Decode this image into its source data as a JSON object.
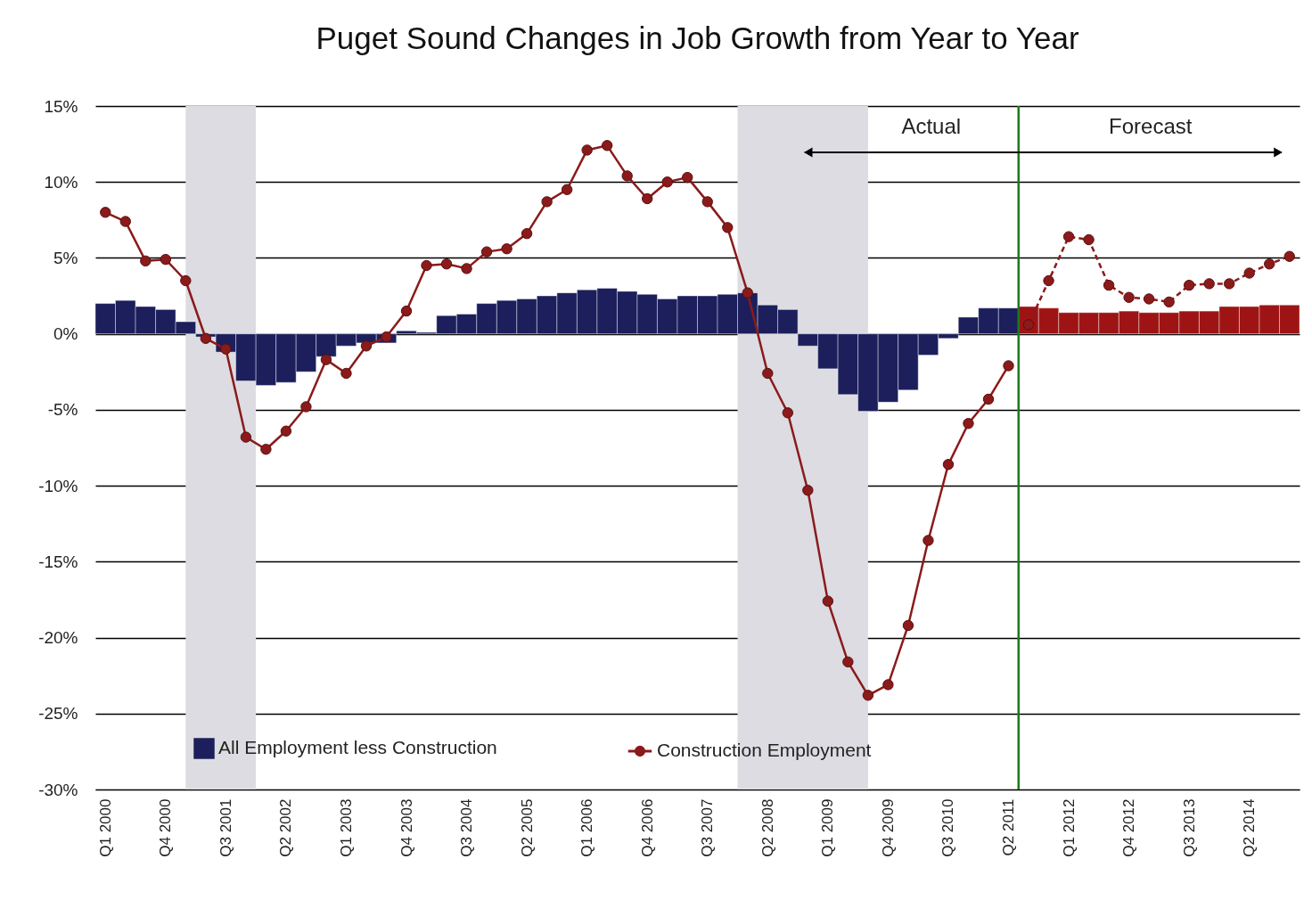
{
  "chart_data": {
    "type": "bar",
    "title": "Puget Sound Changes in Job Growth from Year to Year",
    "categories": [
      "Q1 2000",
      null,
      null,
      "Q4 2000",
      null,
      null,
      "Q3 2001",
      null,
      null,
      "Q2 2002",
      null,
      null,
      "Q1 2003",
      null,
      null,
      "Q4 2003",
      null,
      null,
      "Q3 2004",
      null,
      null,
      "Q2 2005",
      null,
      null,
      "Q1 2006",
      null,
      null,
      "Q4 2006",
      null,
      null,
      "Q3 2007",
      null,
      null,
      "Q2 2008",
      null,
      null,
      "Q1 2009",
      null,
      null,
      "Q4 2009",
      null,
      null,
      "Q3 2010",
      null,
      null,
      "Q2 2011",
      null,
      null,
      "Q1 2012",
      null,
      null,
      "Q4 2012",
      null,
      null,
      "Q3 2013",
      null,
      null,
      "Q2 2014",
      null,
      null
    ],
    "series": [
      {
        "name": "All Employment less Construction",
        "color": "#1c1f5c",
        "colors": [
          "#1c1f5c",
          "#1c1f5c",
          "#1c1f5c",
          "#1c1f5c",
          "#1c1f5c",
          "#1c1f5c",
          "#1c1f5c",
          "#1c1f5c",
          "#1c1f5c",
          "#1c1f5c",
          "#1c1f5c",
          "#1c1f5c",
          "#1c1f5c",
          "#1c1f5c",
          "#1c1f5c",
          "#1c1f5c",
          "#1c1f5c",
          "#1c1f5c",
          "#1c1f5c",
          "#1c1f5c",
          "#1c1f5c",
          "#1c1f5c",
          "#1c1f5c",
          "#1c1f5c",
          "#1c1f5c",
          "#1c1f5c",
          "#1c1f5c",
          "#1c1f5c",
          "#1c1f5c",
          "#1c1f5c",
          "#1c1f5c",
          "#1c1f5c",
          "#1c1f5c",
          "#1c1f5c",
          "#1c1f5c",
          "#1c1f5c",
          "#1c1f5c",
          "#1c1f5c",
          "#1c1f5c",
          "#1c1f5c",
          "#1c1f5c",
          "#1c1f5c",
          "#1c1f5c",
          "#1c1f5c",
          "#1c1f5c",
          "#1c1f5c",
          "#9e1414",
          "#9e1414",
          "#9e1414",
          "#9e1414",
          "#9e1414",
          "#9e1414",
          "#9e1414",
          "#9e1414",
          "#9e1414",
          "#9e1414",
          "#9e1414",
          "#9e1414",
          "#9e1414",
          "#9e1414"
        ],
        "values": [
          2.0,
          2.2,
          1.8,
          1.6,
          0.8,
          -0.2,
          -1.2,
          -3.1,
          -3.4,
          -3.2,
          -2.5,
          -1.5,
          -0.8,
          -0.6,
          -0.6,
          0.2,
          0.1,
          1.2,
          1.3,
          2.0,
          2.2,
          2.3,
          2.5,
          2.7,
          2.9,
          3.0,
          2.8,
          2.6,
          2.3,
          2.5,
          2.5,
          2.6,
          2.7,
          1.9,
          1.6,
          -0.8,
          -2.3,
          -4.0,
          -5.1,
          -4.5,
          -3.7,
          -1.4,
          -0.3,
          1.1,
          1.7,
          1.7,
          1.8,
          1.7,
          1.4,
          1.4,
          1.4,
          1.5,
          1.4,
          1.4,
          1.5,
          1.5,
          1.8,
          1.8,
          1.9,
          1.9
        ]
      },
      {
        "name": "Construction Employment",
        "type": "line",
        "color": "#8b1a1a",
        "line_style": "solid",
        "values": [
          8.0,
          7.4,
          4.8,
          4.9,
          3.5,
          -0.3,
          -1.0,
          -6.8,
          -7.6,
          -6.4,
          -4.8,
          -1.7,
          -2.6,
          -0.8,
          -0.2,
          1.5,
          4.5,
          4.6,
          4.3,
          5.4,
          5.6,
          6.6,
          8.7,
          9.5,
          12.1,
          12.4,
          10.4,
          8.9,
          10.0,
          10.3,
          8.7,
          7.0,
          2.7,
          -2.6,
          -5.2,
          -10.3,
          -17.6,
          -21.6,
          -23.8,
          -23.1,
          -19.2,
          -13.6,
          -8.6,
          -5.9,
          -4.3,
          -2.1,
          null,
          null,
          null,
          null,
          null,
          null,
          null,
          null,
          null,
          null,
          null,
          null,
          null,
          null
        ]
      },
      {
        "type": "line",
        "color": "#8b1a1a",
        "line_style": "dashed",
        "values": [
          null,
          null,
          null,
          null,
          null,
          null,
          null,
          null,
          null,
          null,
          null,
          null,
          null,
          null,
          null,
          null,
          null,
          null,
          null,
          null,
          null,
          null,
          null,
          null,
          null,
          null,
          null,
          null,
          null,
          null,
          null,
          null,
          null,
          null,
          null,
          null,
          null,
          null,
          null,
          null,
          null,
          null,
          null,
          null,
          null,
          null,
          0.6,
          3.5,
          6.4,
          6.2,
          3.2,
          2.4,
          2.3,
          2.1,
          3.2,
          3.3,
          3.3,
          4.0,
          4.6,
          5.1
        ]
      }
    ],
    "ylim": [
      -30,
      15
    ],
    "yticks": [
      {
        "value": -30,
        "label": "-30%"
      },
      {
        "value": -25,
        "label": "-25%"
      },
      {
        "value": -20,
        "label": "-20%"
      },
      {
        "value": -15,
        "label": "-15%"
      },
      {
        "value": -10,
        "label": "-10%"
      },
      {
        "value": -5,
        "label": "-5%"
      },
      {
        "value": 0,
        "label": "0%"
      },
      {
        "value": 5,
        "label": "5%"
      },
      {
        "value": 10,
        "label": "10%"
      },
      {
        "value": 15,
        "label": "15%"
      }
    ],
    "annotations": [
      "Actual",
      "Forecast"
    ],
    "grid": "y",
    "legend": "bottom left",
    "marker": "circle"
  }
}
